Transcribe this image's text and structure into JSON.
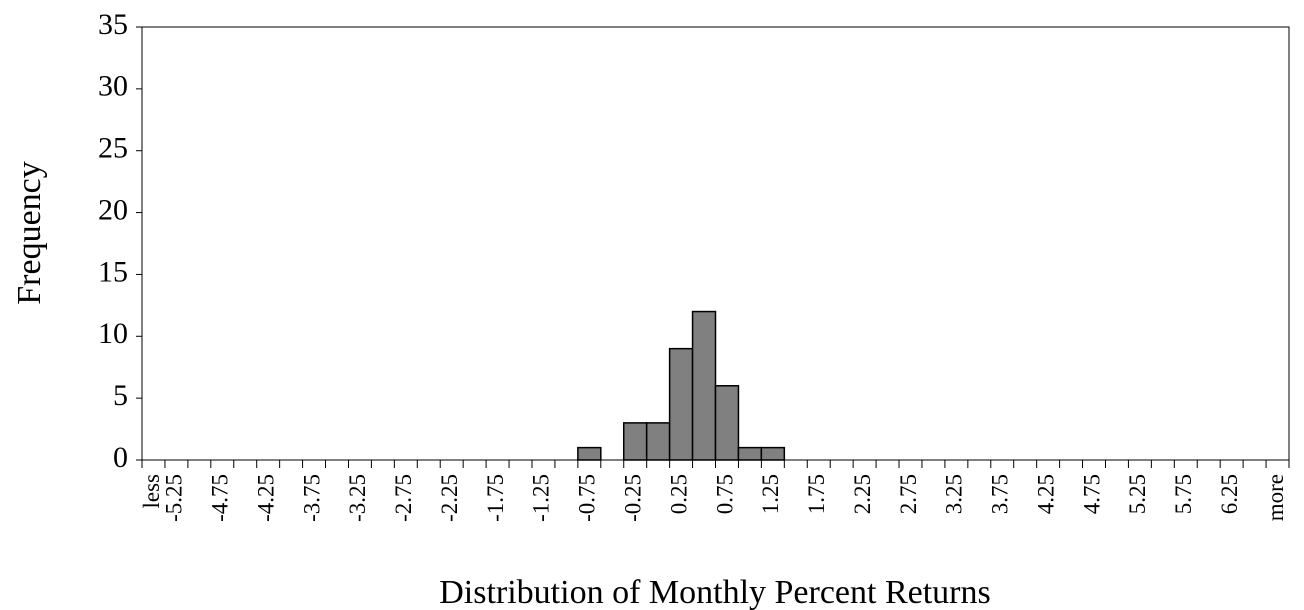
{
  "chart_data": {
    "type": "bar",
    "x_label": "Distribution of Monthly Percent Returns",
    "y_label": "Frequency",
    "categories": [
      "less",
      "-5.25",
      null,
      "-4.75",
      null,
      "-4.25",
      null,
      "-3.75",
      null,
      "-3.25",
      null,
      "-2.75",
      null,
      "-2.25",
      null,
      "-1.75",
      null,
      "-1.25",
      null,
      "-0.75",
      null,
      "-0.25",
      null,
      "0.25",
      null,
      "0.75",
      null,
      "1.25",
      null,
      "1.75",
      null,
      "2.25",
      null,
      "2.75",
      null,
      "3.25",
      null,
      "3.75",
      null,
      "4.25",
      null,
      "4.75",
      null,
      "5.25",
      null,
      "5.75",
      null,
      "6.25",
      null,
      "more"
    ],
    "values": [
      0,
      0,
      0,
      0,
      0,
      0,
      0,
      0,
      0,
      0,
      0,
      0,
      0,
      0,
      0,
      0,
      0,
      0,
      0,
      1,
      0,
      3,
      3,
      9,
      12,
      6,
      1,
      1,
      0,
      0,
      0,
      0,
      0,
      0,
      0,
      0,
      0,
      0,
      0,
      0,
      0,
      0,
      0,
      0,
      0,
      0,
      0,
      0,
      0,
      0
    ],
    "color": "#808080",
    "ylim": [
      0,
      35
    ],
    "yticks": [
      0,
      5,
      10,
      15,
      20,
      25,
      30,
      35
    ],
    "grid": false
  }
}
